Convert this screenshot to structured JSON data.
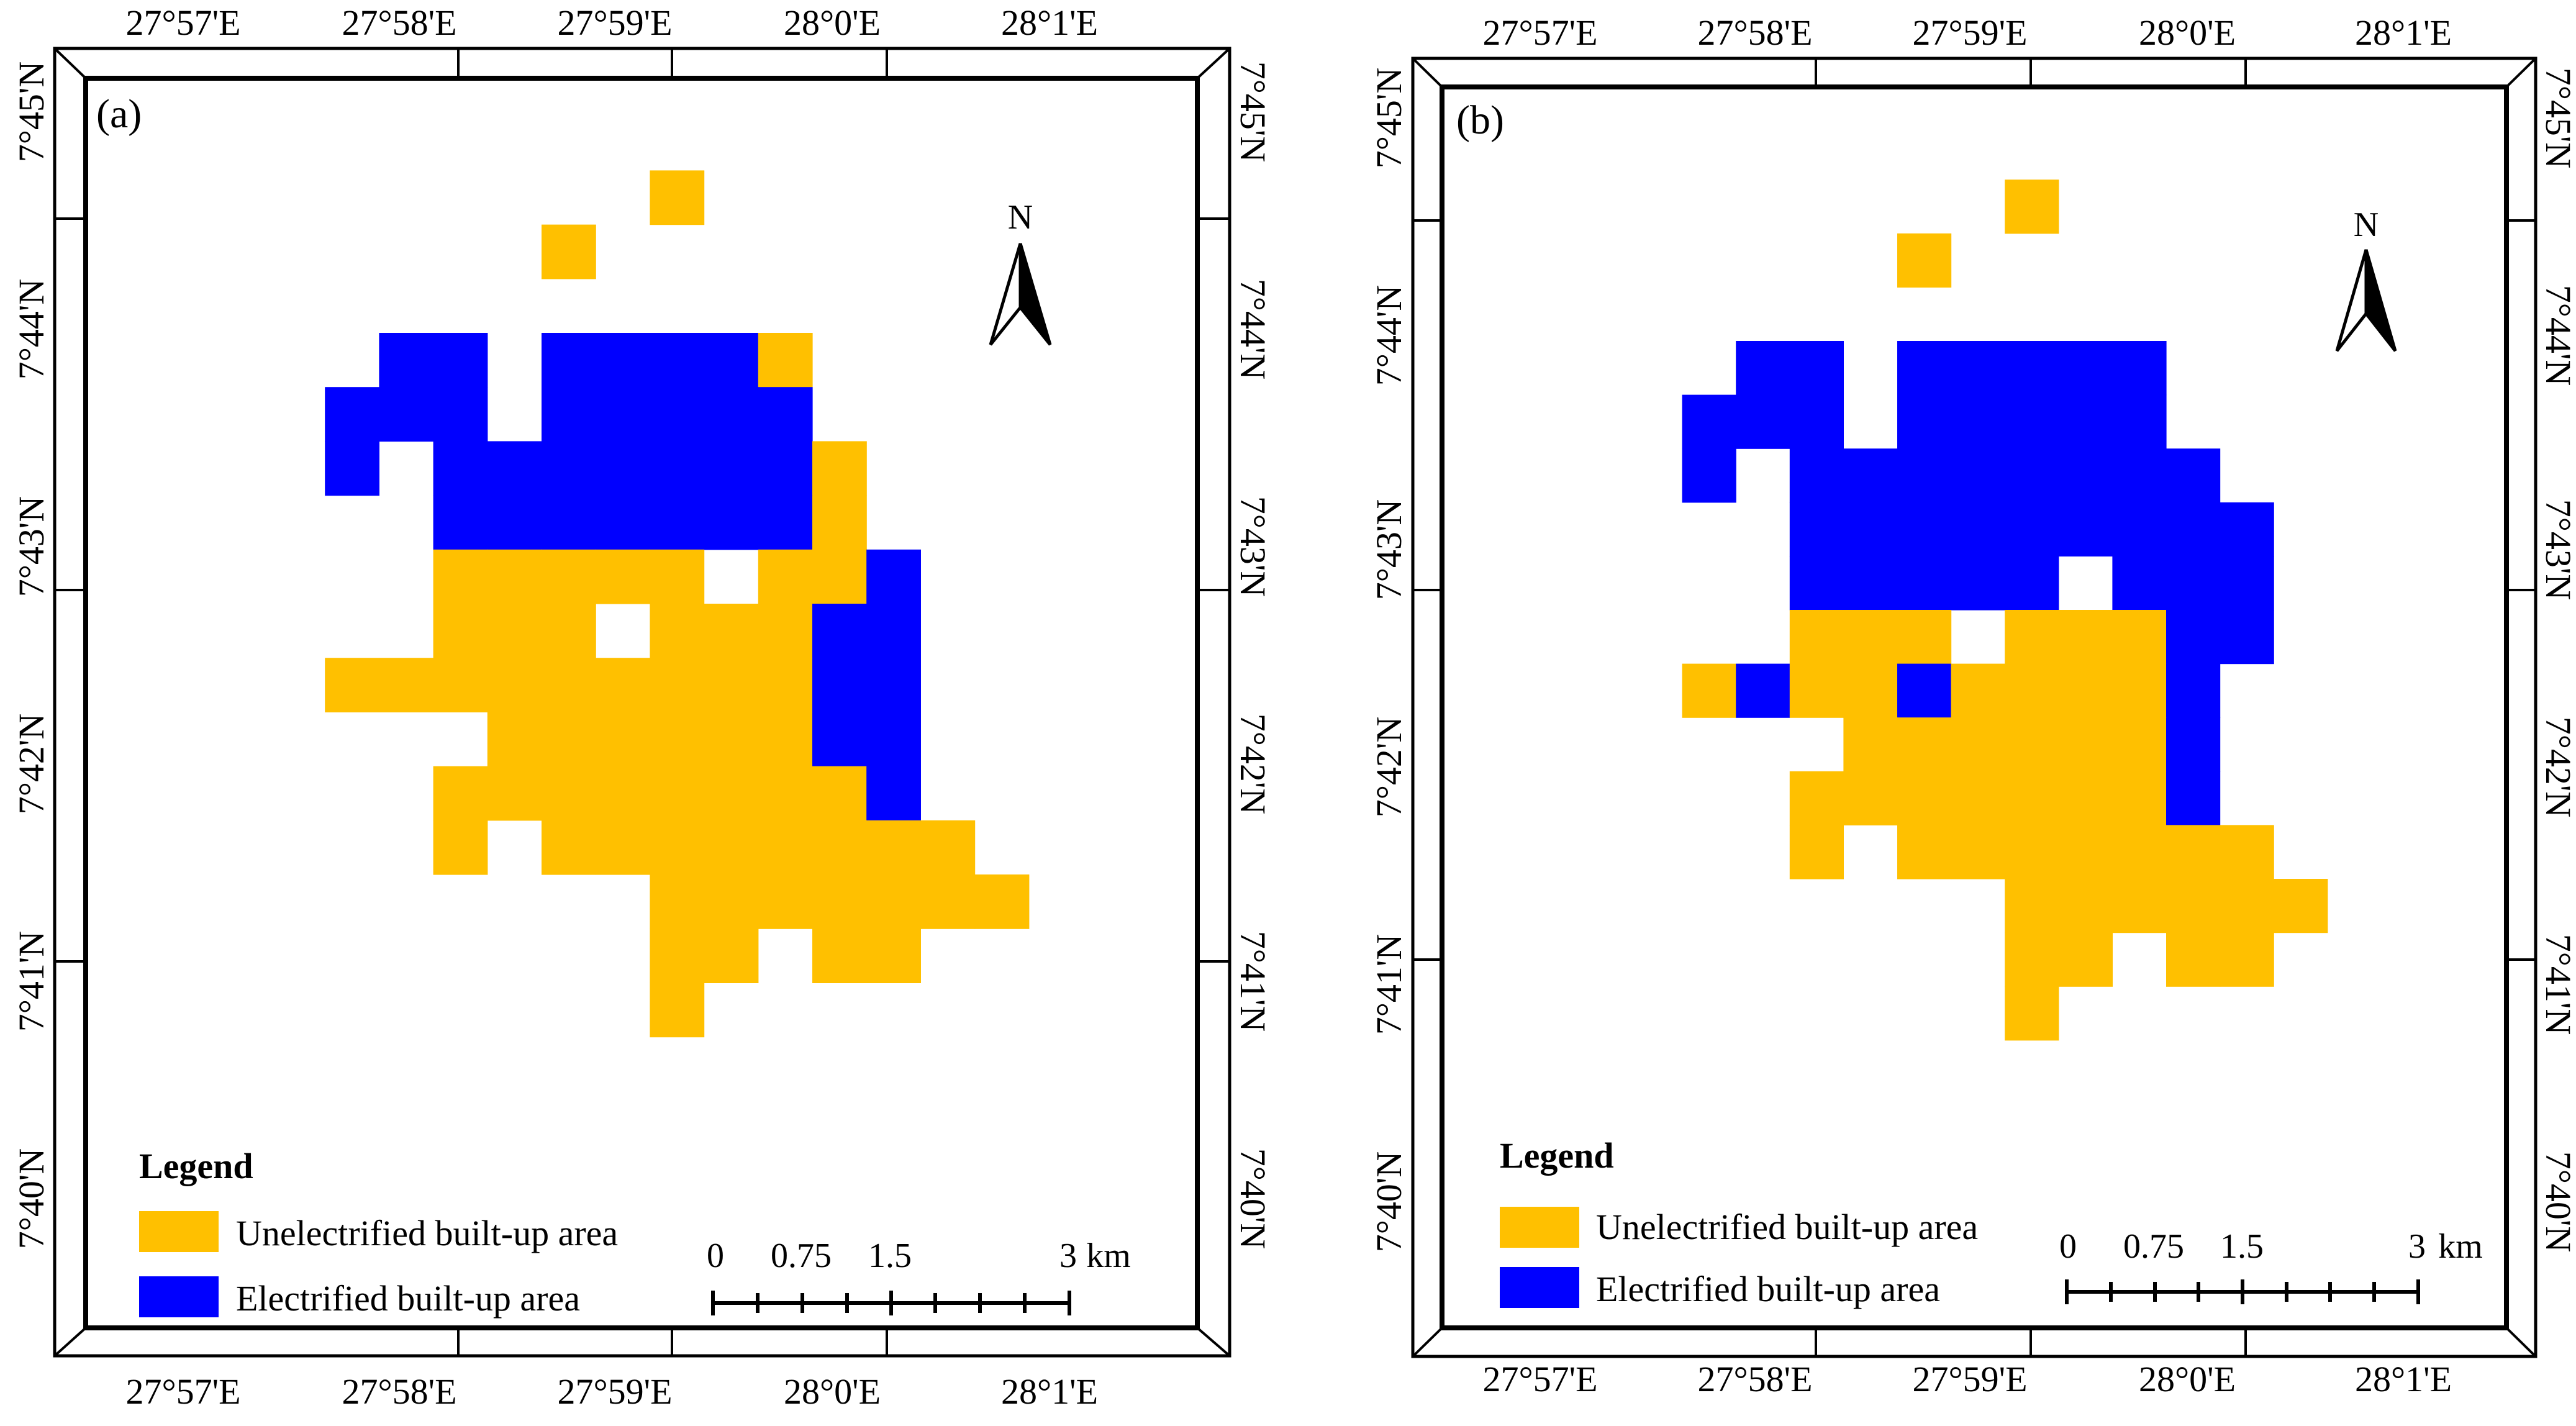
{
  "colors": {
    "unelectrified": "#FFC000",
    "electrified": "#0000FF",
    "frame": "#000000"
  },
  "coordinates": {
    "lon_labels": [
      "27°57'E",
      "27°58'E",
      "27°59'E",
      "28°0'E",
      "28°1'E"
    ],
    "lat_labels": [
      "7°45'N",
      "7°44'N",
      "7°43'N",
      "7°42'N",
      "7°41'N",
      "7°40'N"
    ]
  },
  "panels": [
    {
      "id": "a",
      "label": "(a)",
      "north": "N",
      "legend": {
        "title": "Legend",
        "items": [
          {
            "label": "Unelectrified built-up area",
            "key": "unelectrified"
          },
          {
            "label": "Electrified built-up area",
            "key": "electrified"
          }
        ]
      },
      "scalebar": {
        "ticks": [
          "0",
          "0.75",
          "1.5",
          "3"
        ],
        "unit": "km"
      },
      "grid_rows": [
        "........",
        "........",
        ".......Y",
        ".....Y..",
        "........",
        "..BB.BBBBY..",
        ".BBB.BBBBB..",
        ".B.BBBBBBBY.",
        "...BBBBBBBY.",
        "...YYYYY.YYB",
        "...YYY.YYYBB",
        ".YYYYYYYYYBB",
        "....YYYYYYBB",
        "...YYYYYYYYB",
        "...Y.YYYYYYYY",
        ".......YYYYYYY",
        ".......YY.YY..",
        ".......Y......"
      ]
    },
    {
      "id": "b",
      "label": "(b)",
      "north": "N",
      "legend": {
        "title": "Legend",
        "items": [
          {
            "label": "Unelectrified built-up area",
            "key": "unelectrified"
          },
          {
            "label": "Electrified built-up area",
            "key": "electrified"
          }
        ]
      },
      "scalebar": {
        "ticks": [
          "0",
          "0.75",
          "1.5",
          "3"
        ],
        "unit": "km"
      },
      "grid_rows": [
        "........",
        "........",
        ".......Y",
        ".....Y..",
        "........",
        "..BB.BBBBB..",
        ".BBB.BBBBB..",
        ".B.BBBBBBBB.",
        "...BBBBBBBBB",
        "...BBBBB.BBB",
        "...YYY.YYYBB",
        ".YBYYBYYYYB.",
        "....YYYYYYB.",
        "...YYYYYYYB.",
        "...Y.YYYYYYY",
        ".......YYYYYY",
        ".......YY.YY.",
        ".......Y....."
      ]
    }
  ]
}
